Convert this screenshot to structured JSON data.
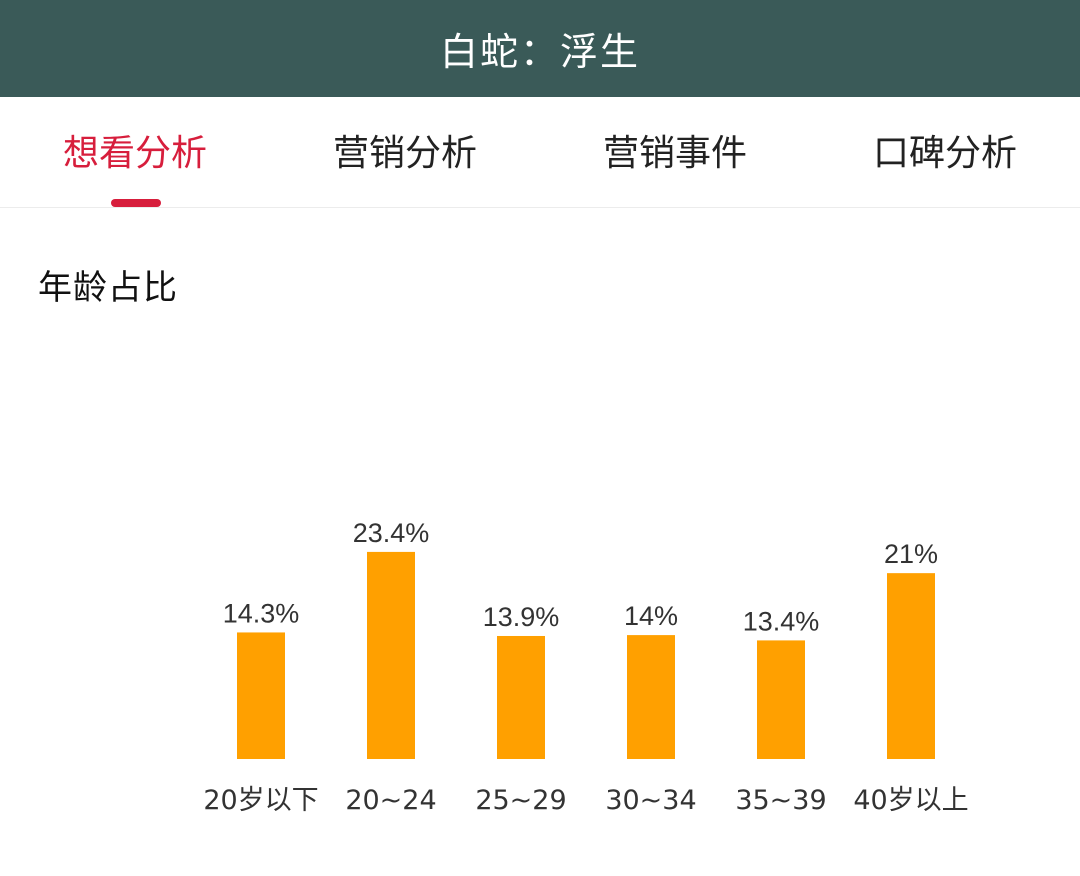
{
  "header": {
    "title": "白蛇：浮生"
  },
  "tabs": [
    {
      "label": "想看分析",
      "active": true
    },
    {
      "label": "营销分析",
      "active": false
    },
    {
      "label": "营销事件",
      "active": false
    },
    {
      "label": "口碑分析",
      "active": false
    }
  ],
  "colors": {
    "header_bg": "#3a5a58",
    "accent": "#d71e3c",
    "bar": "#ffa000"
  },
  "section": {
    "title": "年龄占比"
  },
  "chart_data": {
    "type": "bar",
    "title": "年龄占比",
    "categories": [
      "20岁以下",
      "20~24",
      "25~29",
      "30~34",
      "35~39",
      "40岁以上"
    ],
    "values": [
      14.3,
      23.4,
      13.9,
      14,
      13.4,
      21
    ],
    "value_labels": [
      "14.3%",
      "23.4%",
      "13.9%",
      "14%",
      "13.4%",
      "21%"
    ],
    "unit": "%",
    "ylim": [
      0,
      24
    ],
    "grid": false,
    "axes_visible": false
  }
}
